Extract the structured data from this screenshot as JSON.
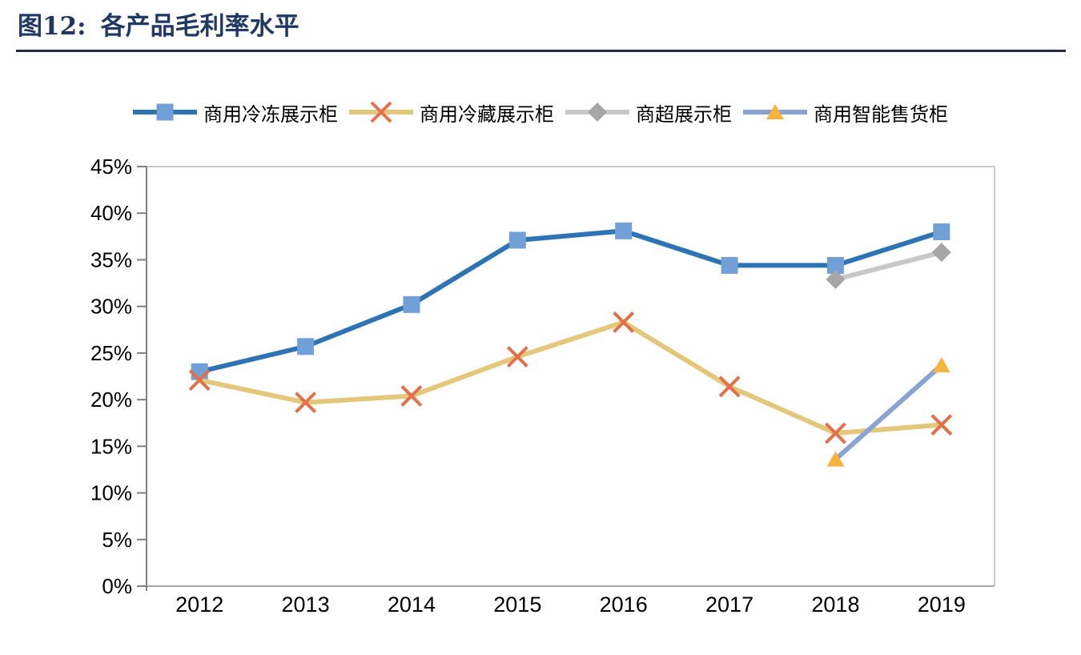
{
  "header": {
    "figure_label": "图12:",
    "figure_title": "各产品毛利率水平",
    "title_color": "#1F3864"
  },
  "chart_data": {
    "type": "line",
    "title": "图12: 各产品毛利率水平",
    "legend_position": "top",
    "grid": false,
    "x_categories": [
      "2012",
      "2013",
      "2014",
      "2015",
      "2016",
      "2017",
      "2018",
      "2019"
    ],
    "y_axis": {
      "min": 0,
      "max": 45,
      "step": 5,
      "unit": "%",
      "labels": [
        "0%",
        "5%",
        "10%",
        "15%",
        "20%",
        "25%",
        "30%",
        "35%",
        "40%",
        "45%"
      ]
    },
    "series": [
      {
        "name": "商用冷冻展示柜",
        "marker": "square",
        "line_color": "#2E74B5",
        "marker_color": "#71A0D9",
        "values": [
          23.0,
          25.7,
          30.2,
          37.1,
          38.1,
          34.4,
          34.4,
          38.0
        ]
      },
      {
        "name": "商用冷藏展示柜",
        "marker": "x",
        "line_color": "#E3C87C",
        "marker_color": "#E4704A",
        "values": [
          22.1,
          19.7,
          20.4,
          24.6,
          28.3,
          21.4,
          16.4,
          17.3
        ]
      },
      {
        "name": "商超展示柜",
        "marker": "diamond",
        "line_color": "#C8C8C8",
        "marker_color": "#A6A6A6",
        "values": [
          null,
          null,
          null,
          null,
          null,
          null,
          32.9,
          35.8
        ]
      },
      {
        "name": "商用智能售货柜",
        "marker": "triangle",
        "line_color": "#8AA4D2",
        "marker_color": "#F6B33D",
        "values": [
          null,
          null,
          null,
          null,
          null,
          null,
          13.6,
          23.7
        ]
      }
    ],
    "axis_colors": {
      "left_axis": "#808080",
      "bottom_axis": "#A6A6A6",
      "plot_border": "#C9C9C9",
      "tick_label": "#000000"
    }
  }
}
